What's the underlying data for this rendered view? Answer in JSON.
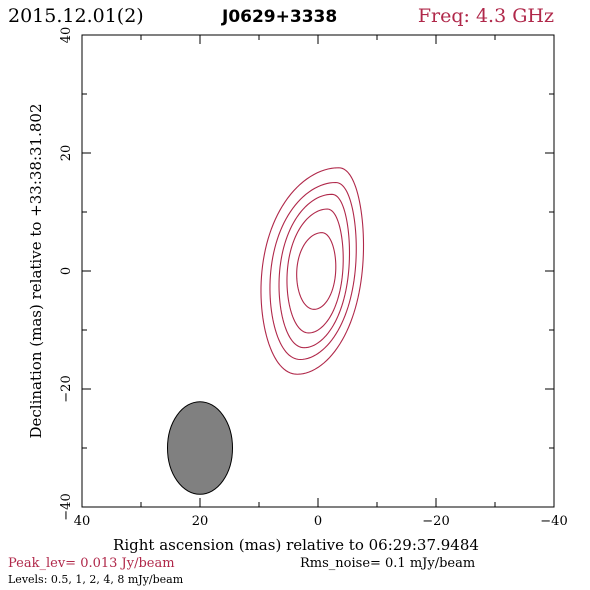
{
  "header": {
    "date": "2015.12.01(2)",
    "source": "J0629+3338",
    "freq": "Freq: 4.3 GHz"
  },
  "colors": {
    "contour": "#b0284a",
    "beam_fill": "#808080",
    "axis": "#000000",
    "freq_text": "#b0284a"
  },
  "footer": {
    "peak": "Peak_lev=  0.013 Jy/beam",
    "rms": "Rms_noise=  0.1 mJy/beam",
    "levels": "Levels: 0.5,   1,   2,   4,   8 mJy/beam"
  },
  "chart_data": {
    "type": "contour",
    "xlabel": "Right ascension (mas) relative to 06:29:37.9484",
    "ylabel": "Declination (mas) relative to +33:38:31.802",
    "xlim": [
      40,
      -40
    ],
    "ylim": [
      -40,
      40
    ],
    "x_ticks": [
      40,
      20,
      0,
      -20,
      -40
    ],
    "y_ticks": [
      -40,
      -20,
      0,
      20,
      40
    ],
    "x_tick_labels": [
      "40",
      "20",
      "0",
      "−20",
      "−40"
    ],
    "y_tick_labels": [
      "−40",
      "−20",
      "0",
      "20",
      "40"
    ],
    "x_minor_step": 10,
    "y_minor_step": 10,
    "contour_levels_mJy": [
      0.5,
      1,
      2,
      4,
      8
    ],
    "contours": [
      {
        "level": 0.5,
        "cx": 0,
        "cy": 0,
        "rx_east": 9.5,
        "rx_west": 7.5,
        "ry": 17.5,
        "skew": 0.2
      },
      {
        "level": 1,
        "cx": 0,
        "cy": 0,
        "rx_east": 8.0,
        "rx_west": 6.3,
        "ry": 15.0,
        "skew": 0.2
      },
      {
        "level": 2,
        "cx": 0,
        "cy": 0,
        "rx_east": 6.5,
        "rx_west": 5.2,
        "ry": 13.0,
        "skew": 0.18
      },
      {
        "level": 4,
        "cx": 0,
        "cy": 0,
        "rx_east": 5.2,
        "rx_west": 4.2,
        "ry": 10.5,
        "skew": 0.15
      },
      {
        "level": 8,
        "cx": 0,
        "cy": 0,
        "rx_east": 3.6,
        "rx_west": 3.0,
        "ry": 6.5,
        "skew": 0.1
      }
    ],
    "beam": {
      "x": 20,
      "y": -30,
      "major": 16,
      "minor": 7.6,
      "pa_deg": 0
    }
  }
}
